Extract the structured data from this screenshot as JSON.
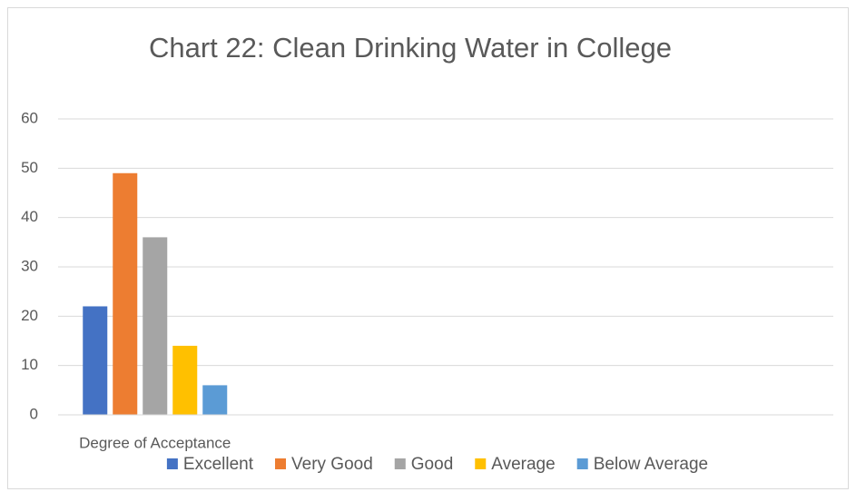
{
  "chart_data": {
    "type": "bar",
    "title": "Chart 22: Clean Drinking Water in College",
    "categories": [
      "Degree of Acceptance",
      null,
      null,
      null
    ],
    "series": [
      {
        "name": "Excellent",
        "color": "#4472c4",
        "values": [
          22,
          null,
          null,
          null
        ]
      },
      {
        "name": "Very Good",
        "color": "#ed7d31",
        "values": [
          49,
          null,
          null,
          null
        ]
      },
      {
        "name": "Good",
        "color": "#a5a5a5",
        "values": [
          36,
          null,
          null,
          null
        ]
      },
      {
        "name": "Average",
        "color": "#ffc000",
        "values": [
          14,
          null,
          null,
          null
        ]
      },
      {
        "name": "Below Average",
        "color": "#5b9bd5",
        "values": [
          6,
          null,
          null,
          null
        ]
      }
    ],
    "ylim": [
      0,
      60
    ],
    "yticks": [
      0,
      10,
      20,
      30,
      40,
      50,
      60
    ],
    "grid": true,
    "legend": "bottom"
  }
}
